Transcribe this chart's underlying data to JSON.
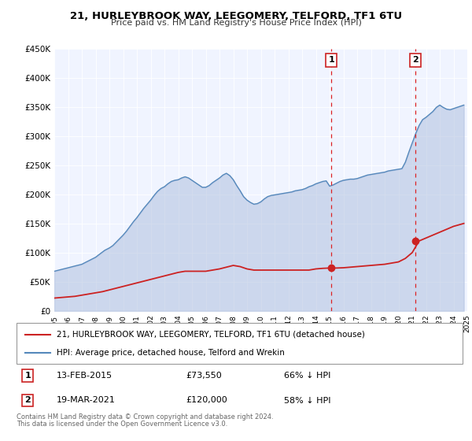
{
  "title": "21, HURLEYBROOK WAY, LEEGOMERY, TELFORD, TF1 6TU",
  "subtitle": "Price paid vs. HM Land Registry's House Price Index (HPI)",
  "xlim": [
    1995,
    2025
  ],
  "ylim": [
    0,
    450000
  ],
  "yticks": [
    0,
    50000,
    100000,
    150000,
    200000,
    250000,
    300000,
    350000,
    400000,
    450000
  ],
  "ytick_labels": [
    "£0",
    "£50K",
    "£100K",
    "£150K",
    "£200K",
    "£250K",
    "£300K",
    "£350K",
    "£400K",
    "£450K"
  ],
  "hpi_color": "#5588bb",
  "hpi_fill_color": "#aabbdd",
  "price_color": "#cc2222",
  "marker_color": "#cc2222",
  "vline_color": "#dd2222",
  "background_color": "#ffffff",
  "plot_bg_color": "#f0f4ff",
  "grid_color": "#ffffff",
  "legend_label_price": "21, HURLEYBROOK WAY, LEEGOMERY, TELFORD, TF1 6TU (detached house)",
  "legend_label_hpi": "HPI: Average price, detached house, Telford and Wrekin",
  "sale1_date": 2015.12,
  "sale1_price": 73550,
  "sale1_label": "13-FEB-2015",
  "sale1_amount": "£73,550",
  "sale1_pct": "66% ↓ HPI",
  "sale2_date": 2021.22,
  "sale2_price": 120000,
  "sale2_label": "19-MAR-2021",
  "sale2_amount": "£120,000",
  "sale2_pct": "58% ↓ HPI",
  "footnote_line1": "Contains HM Land Registry data © Crown copyright and database right 2024.",
  "footnote_line2": "This data is licensed under the Open Government Licence v3.0.",
  "hpi_x": [
    1995.0,
    1995.08,
    1995.17,
    1995.25,
    1995.33,
    1995.42,
    1995.5,
    1995.58,
    1995.67,
    1995.75,
    1995.83,
    1995.92,
    1996.0,
    1996.08,
    1996.17,
    1996.25,
    1996.33,
    1996.42,
    1996.5,
    1996.58,
    1996.67,
    1996.75,
    1996.83,
    1996.92,
    1997.0,
    1997.08,
    1997.17,
    1997.25,
    1997.33,
    1997.42,
    1997.5,
    1997.58,
    1997.67,
    1997.75,
    1997.83,
    1997.92,
    1998.0,
    1998.08,
    1998.17,
    1998.25,
    1998.33,
    1998.42,
    1998.5,
    1998.58,
    1998.67,
    1998.75,
    1998.83,
    1998.92,
    1999.0,
    1999.25,
    1999.5,
    1999.75,
    2000.0,
    2000.25,
    2000.5,
    2000.75,
    2001.0,
    2001.25,
    2001.5,
    2001.75,
    2002.0,
    2002.25,
    2002.5,
    2002.75,
    2003.0,
    2003.25,
    2003.5,
    2003.75,
    2004.0,
    2004.25,
    2004.5,
    2004.75,
    2005.0,
    2005.25,
    2005.5,
    2005.75,
    2006.0,
    2006.25,
    2006.5,
    2006.75,
    2007.0,
    2007.25,
    2007.5,
    2007.75,
    2008.0,
    2008.25,
    2008.5,
    2008.75,
    2009.0,
    2009.25,
    2009.5,
    2009.75,
    2010.0,
    2010.25,
    2010.5,
    2010.75,
    2011.0,
    2011.25,
    2011.5,
    2011.75,
    2012.0,
    2012.25,
    2012.5,
    2012.75,
    2013.0,
    2013.25,
    2013.5,
    2013.75,
    2014.0,
    2014.25,
    2014.5,
    2014.75,
    2015.0,
    2015.25,
    2015.5,
    2015.75,
    2016.0,
    2016.25,
    2016.5,
    2016.75,
    2017.0,
    2017.25,
    2017.5,
    2017.75,
    2018.0,
    2018.25,
    2018.5,
    2018.75,
    2019.0,
    2019.25,
    2019.5,
    2019.75,
    2020.0,
    2020.25,
    2020.5,
    2020.75,
    2021.0,
    2021.25,
    2021.5,
    2021.75,
    2022.0,
    2022.25,
    2022.5,
    2022.75,
    2023.0,
    2023.25,
    2023.5,
    2023.75,
    2024.0,
    2024.25,
    2024.5,
    2024.75
  ],
  "hpi_y": [
    68000,
    68500,
    69000,
    69500,
    70000,
    70500,
    71000,
    71500,
    72000,
    72500,
    73000,
    73500,
    74000,
    74500,
    75000,
    75500,
    76000,
    76500,
    77000,
    77500,
    78000,
    78500,
    79000,
    79500,
    80000,
    81000,
    82000,
    83000,
    84000,
    85000,
    86000,
    87000,
    88000,
    89000,
    90000,
    91000,
    92000,
    93500,
    95000,
    96500,
    98000,
    99500,
    101000,
    102500,
    104000,
    105000,
    106000,
    107000,
    108000,
    112000,
    118000,
    124000,
    130000,
    137000,
    145000,
    153000,
    160000,
    168000,
    176000,
    183000,
    190000,
    198000,
    205000,
    210000,
    213000,
    218000,
    222000,
    224000,
    225000,
    228000,
    230000,
    228000,
    224000,
    220000,
    216000,
    212000,
    212000,
    215000,
    220000,
    224000,
    228000,
    233000,
    236000,
    232000,
    225000,
    215000,
    206000,
    196000,
    190000,
    186000,
    183000,
    184000,
    187000,
    192000,
    196000,
    198000,
    199000,
    200000,
    201000,
    202000,
    203000,
    204000,
    206000,
    207000,
    208000,
    210000,
    213000,
    215000,
    218000,
    220000,
    222000,
    223000,
    214000,
    216000,
    219000,
    222000,
    224000,
    225000,
    226000,
    226000,
    227000,
    229000,
    231000,
    233000,
    234000,
    235000,
    236000,
    237000,
    238000,
    240000,
    241000,
    242000,
    243000,
    244000,
    255000,
    272000,
    288000,
    304000,
    318000,
    328000,
    332000,
    337000,
    342000,
    349000,
    353000,
    349000,
    346000,
    345000,
    347000,
    349000,
    351000,
    353000
  ],
  "price_x": [
    1995.0,
    1995.5,
    1996.0,
    1996.5,
    1997.0,
    1997.5,
    1998.0,
    1998.5,
    1999.0,
    1999.5,
    2000.0,
    2000.5,
    2001.0,
    2001.5,
    2002.0,
    2002.5,
    2003.0,
    2003.5,
    2004.0,
    2004.5,
    2005.0,
    2005.5,
    2006.0,
    2006.5,
    2007.0,
    2007.5,
    2008.0,
    2008.5,
    2009.0,
    2009.5,
    2010.0,
    2010.5,
    2011.0,
    2011.5,
    2012.0,
    2012.5,
    2013.0,
    2013.5,
    2014.0,
    2014.5,
    2015.0,
    2015.5,
    2016.0,
    2016.5,
    2017.0,
    2017.5,
    2018.0,
    2018.5,
    2019.0,
    2019.5,
    2020.0,
    2020.5,
    2021.0,
    2021.5,
    2022.0,
    2022.5,
    2023.0,
    2023.5,
    2024.0,
    2024.75
  ],
  "price_y": [
    22000,
    23000,
    24000,
    25000,
    27000,
    29000,
    31000,
    33000,
    36000,
    39000,
    42000,
    45000,
    48000,
    51000,
    54000,
    57000,
    60000,
    63000,
    66000,
    68000,
    68000,
    68000,
    68000,
    70000,
    72000,
    75000,
    78000,
    76000,
    72000,
    70000,
    70000,
    70000,
    70000,
    70000,
    70000,
    70000,
    70000,
    70000,
    72000,
    73000,
    73550,
    73550,
    74000,
    75000,
    76000,
    77000,
    78000,
    79000,
    80000,
    82000,
    84000,
    90000,
    100000,
    120000,
    125000,
    130000,
    135000,
    140000,
    145000,
    150000
  ]
}
